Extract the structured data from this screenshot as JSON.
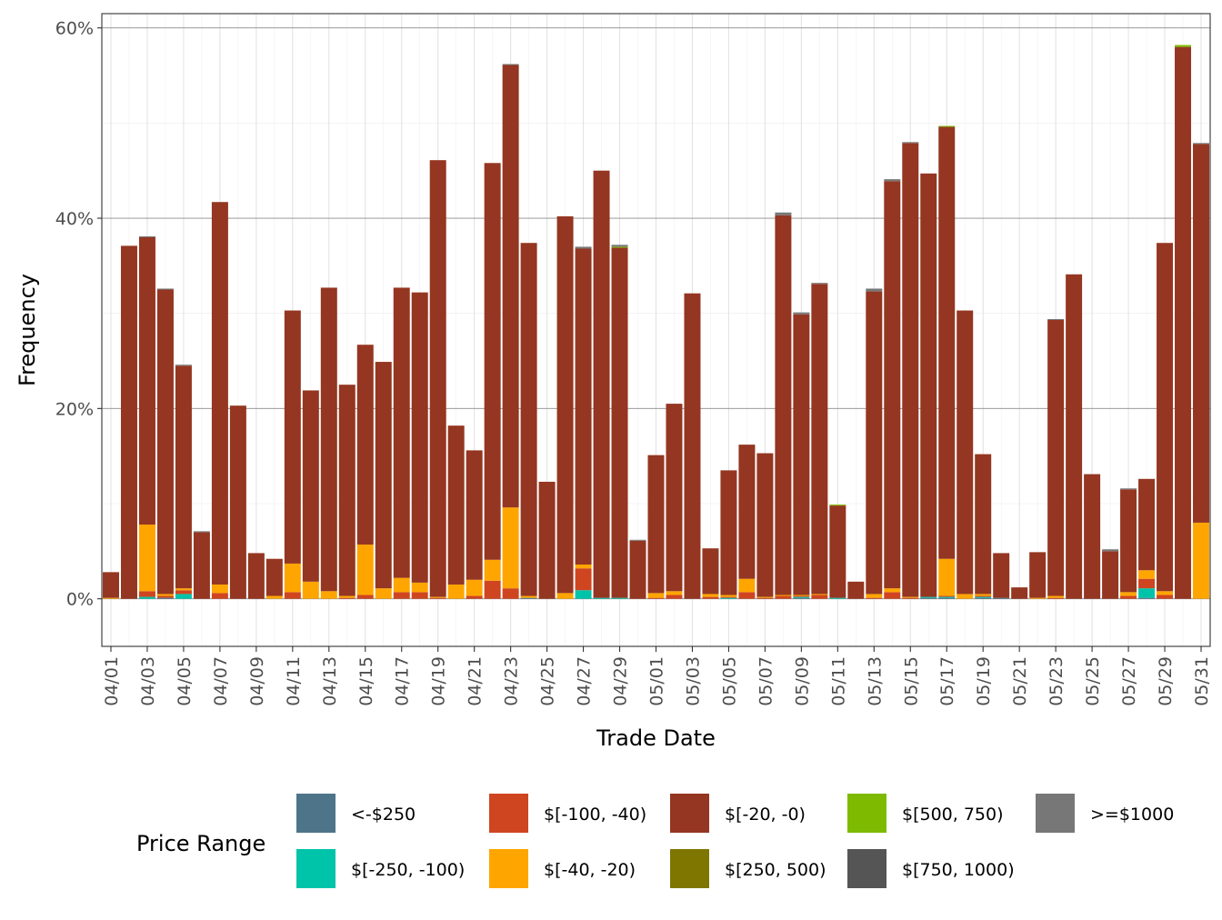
{
  "chart_data": {
    "type": "bar",
    "stacked": true,
    "xlabel": "Trade Date",
    "ylabel": "Frequency",
    "ylim": [
      -0.05,
      0.615
    ],
    "y_ticks": [
      0,
      0.2,
      0.4,
      0.6
    ],
    "y_tick_labels": [
      "0%",
      "20%",
      "40%",
      "60%"
    ],
    "grid": true,
    "legend_position": "bottom",
    "legend_title": "Price Range",
    "categories": [
      "04/01",
      "04/02",
      "04/03",
      "04/04",
      "04/05",
      "04/06",
      "04/07",
      "04/08",
      "04/09",
      "04/10",
      "04/11",
      "04/12",
      "04/13",
      "04/14",
      "04/15",
      "04/16",
      "04/17",
      "04/18",
      "04/19",
      "04/20",
      "04/21",
      "04/22",
      "04/23",
      "04/24",
      "04/25",
      "04/26",
      "04/27",
      "04/28",
      "04/29",
      "04/30",
      "05/01",
      "05/02",
      "05/03",
      "05/04",
      "05/05",
      "05/06",
      "05/07",
      "05/08",
      "05/09",
      "05/10",
      "05/11",
      "05/12",
      "05/13",
      "05/14",
      "05/15",
      "05/16",
      "05/17",
      "05/18",
      "05/19",
      "05/20",
      "05/21",
      "05/22",
      "05/23",
      "05/24",
      "05/25",
      "05/26",
      "05/27",
      "05/28",
      "05/29",
      "05/30",
      "05/31"
    ],
    "x_tick_labels": [
      "04/01",
      "04/03",
      "04/05",
      "04/07",
      "04/09",
      "04/11",
      "04/13",
      "04/15",
      "04/17",
      "04/19",
      "04/21",
      "04/23",
      "04/25",
      "04/27",
      "04/29",
      "05/01",
      "05/03",
      "05/05",
      "05/07",
      "05/09",
      "05/11",
      "05/13",
      "05/15",
      "05/17",
      "05/19",
      "05/21",
      "05/23",
      "05/25",
      "05/27",
      "05/29",
      "05/31"
    ],
    "series": [
      {
        "name": "<-$250",
        "color": "#4E7489",
        "values": [
          0,
          0,
          0,
          0.001,
          0,
          0,
          0,
          0,
          0,
          0,
          0,
          0,
          0,
          0,
          0,
          0,
          0,
          0,
          0,
          0,
          0,
          0,
          0,
          0.001,
          0,
          0,
          0,
          0,
          0,
          0,
          0,
          0,
          0,
          0,
          0,
          0,
          0,
          0,
          0.001,
          0,
          0,
          0,
          0,
          0,
          0,
          0.001,
          0.001,
          0,
          0.001,
          0.001,
          0,
          0,
          0,
          0,
          0,
          0,
          0,
          0.001,
          0,
          0,
          0
        ]
      },
      {
        "name": "$[-250, -100)",
        "color": "#00C4AA",
        "values": [
          0,
          0,
          0.002,
          0,
          0.005,
          0,
          0,
          0,
          0,
          0,
          0,
          0,
          0,
          0,
          0,
          0,
          0,
          0,
          0,
          0,
          0,
          0,
          0,
          0,
          0,
          0,
          0.009,
          0.001,
          0.001,
          0,
          0,
          0,
          0,
          0,
          0.001,
          0,
          0,
          0,
          0.001,
          0,
          0.001,
          0,
          0,
          0,
          0,
          0.001,
          0.001,
          0,
          0.001,
          0,
          0,
          0,
          0,
          0,
          0,
          0,
          0,
          0.01,
          0,
          0,
          0
        ]
      },
      {
        "name": "$[-100, -40)",
        "color": "#CF4520",
        "values": [
          0,
          0,
          0.006,
          0.002,
          0.004,
          0,
          0.006,
          0,
          0,
          0,
          0.007,
          0,
          0,
          0.001,
          0.004,
          0,
          0.007,
          0.007,
          0.001,
          0,
          0.003,
          0.019,
          0.011,
          0,
          0,
          0,
          0.023,
          0,
          0,
          0,
          0.001,
          0.004,
          0,
          0.002,
          0.001,
          0.007,
          0.001,
          0.003,
          0.001,
          0.004,
          0,
          0,
          0.001,
          0.007,
          0.001,
          0,
          0.001,
          0,
          0.001,
          0,
          0,
          0,
          0.001,
          0,
          0,
          0,
          0.003,
          0.01,
          0.004,
          0,
          0
        ]
      },
      {
        "name": "$[-40, -20)",
        "color": "#FFA500",
        "values": [
          0.001,
          0,
          0.07,
          0.002,
          0.002,
          0,
          0.009,
          0,
          0,
          0.003,
          0.03,
          0.018,
          0.008,
          0.002,
          0.053,
          0.011,
          0.015,
          0.01,
          0.001,
          0.015,
          0.017,
          0.022,
          0.085,
          0.002,
          0,
          0.006,
          0.004,
          0,
          0,
          0,
          0.005,
          0.004,
          0,
          0.003,
          0.002,
          0.014,
          0.001,
          0.001,
          0.001,
          0.001,
          0,
          0,
          0.004,
          0.004,
          0.001,
          0,
          0.039,
          0.005,
          0.002,
          0,
          0,
          0.001,
          0.002,
          0,
          0,
          0,
          0.004,
          0.009,
          0.004,
          0,
          0.08
        ]
      },
      {
        "name": "$[-20, -0)",
        "color": "#943621",
        "values": [
          0.027,
          0.371,
          0.302,
          0.32,
          0.234,
          0.07,
          0.402,
          0.203,
          0.048,
          0.039,
          0.266,
          0.201,
          0.319,
          0.222,
          0.21,
          0.238,
          0.305,
          0.305,
          0.459,
          0.167,
          0.136,
          0.417,
          0.465,
          0.371,
          0.123,
          0.396,
          0.332,
          0.449,
          0.368,
          0.061,
          0.145,
          0.197,
          0.321,
          0.048,
          0.131,
          0.141,
          0.151,
          0.399,
          0.295,
          0.326,
          0.097,
          0.018,
          0.318,
          0.428,
          0.477,
          0.445,
          0.454,
          0.298,
          0.147,
          0.047,
          0.012,
          0.048,
          0.29,
          0.341,
          0.131,
          0.05,
          0.108,
          0.096,
          0.366,
          0.58,
          0.398
        ]
      },
      {
        "name": "$[250, 500)",
        "color": "#7F7600",
        "values": [
          0,
          0,
          0,
          0,
          0,
          0,
          0,
          0,
          0,
          0,
          0,
          0,
          0,
          0,
          0,
          0,
          0,
          0,
          0,
          0,
          0,
          0,
          0,
          0,
          0,
          0,
          0,
          0,
          0,
          0,
          0,
          0,
          0,
          0,
          0,
          0,
          0,
          0,
          0,
          0,
          0,
          0,
          0,
          0,
          0,
          0,
          0,
          0,
          0,
          0,
          0,
          0,
          0,
          0,
          0,
          0,
          0,
          0,
          0,
          0,
          0
        ]
      },
      {
        "name": "$[500, 750)",
        "color": "#7DBA00",
        "values": [
          0,
          0,
          0,
          0,
          0,
          0,
          0,
          0,
          0,
          0,
          0,
          0,
          0,
          0,
          0,
          0,
          0,
          0,
          0,
          0,
          0,
          0,
          0,
          0,
          0,
          0,
          0,
          0,
          0.001,
          0,
          0,
          0,
          0,
          0,
          0,
          0,
          0,
          0,
          0,
          0,
          0.001,
          0,
          0,
          0,
          0,
          0,
          0.001,
          0,
          0,
          0,
          0,
          0,
          0,
          0,
          0,
          0,
          0,
          0,
          0,
          0.002,
          0
        ]
      },
      {
        "name": "$[750, 1000)",
        "color": "#555555",
        "values": [
          0,
          0,
          0,
          0,
          0,
          0,
          0,
          0,
          0,
          0,
          0,
          0,
          0,
          0,
          0,
          0,
          0,
          0,
          0,
          0,
          0,
          0,
          0,
          0,
          0,
          0,
          0,
          0,
          0,
          0,
          0,
          0,
          0,
          0,
          0,
          0,
          0,
          0,
          0,
          0,
          0,
          0,
          0,
          0,
          0,
          0,
          0,
          0,
          0,
          0,
          0,
          0,
          0,
          0,
          0,
          0,
          0,
          0,
          0,
          0,
          0
        ]
      },
      {
        "name": ">=$1000",
        "color": "#777777",
        "values": [
          0,
          0,
          0.001,
          0.001,
          0.001,
          0.001,
          0,
          0,
          0,
          0,
          0,
          0,
          0,
          0,
          0,
          0,
          0,
          0,
          0,
          0,
          0,
          0,
          0.001,
          0,
          0,
          0,
          0.002,
          0,
          0.002,
          0.001,
          0,
          0,
          0,
          0,
          0,
          0,
          0,
          0.003,
          0.002,
          0.001,
          0,
          0,
          0.003,
          0.002,
          0.001,
          0,
          0,
          0,
          0,
          0,
          0,
          0,
          0.001,
          0,
          0,
          0.002,
          0.001,
          0,
          0,
          0,
          0.001
        ]
      }
    ]
  }
}
